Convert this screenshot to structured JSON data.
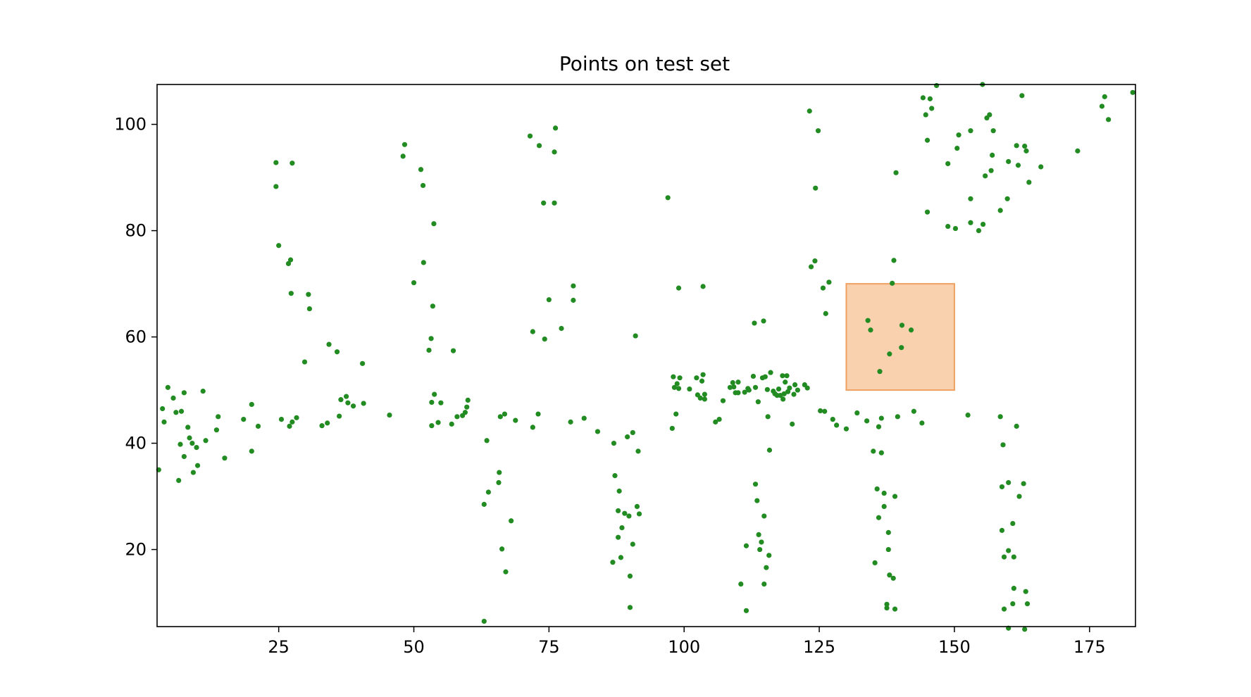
{
  "chart_data": {
    "type": "scatter",
    "title": "Points on test set",
    "xlabel": "",
    "ylabel": "",
    "xlim": [
      2.5,
      183.5
    ],
    "ylim": [
      5.5,
      107.5
    ],
    "xticks": [
      25,
      50,
      75,
      100,
      125,
      150,
      175
    ],
    "yticks": [
      20,
      40,
      60,
      80,
      100
    ],
    "grid": false,
    "legend": "none",
    "colors": {
      "points": "#228b22",
      "highlight_fill": "#f5b37a",
      "highlight_edge": "#f0a060"
    },
    "highlight_region": {
      "x0": 130,
      "x1": 150,
      "y0": 50,
      "y1": 70
    },
    "points": [
      [
        2.8,
        35
      ],
      [
        3.5,
        46.5
      ],
      [
        3.8,
        44
      ],
      [
        4.5,
        50.5
      ],
      [
        5.5,
        48.5
      ],
      [
        6,
        45.8
      ],
      [
        6.5,
        33
      ],
      [
        6.8,
        39.8
      ],
      [
        7,
        46
      ],
      [
        7.5,
        49.5
      ],
      [
        7.5,
        37.5
      ],
      [
        8.2,
        43
      ],
      [
        8.5,
        41
      ],
      [
        9,
        40
      ],
      [
        9.2,
        34.5
      ],
      [
        9.8,
        39.2
      ],
      [
        10,
        35.8
      ],
      [
        11,
        49.8
      ],
      [
        11.5,
        40.5
      ],
      [
        13.5,
        42.5
      ],
      [
        13.8,
        45
      ],
      [
        15,
        37.2
      ],
      [
        18.5,
        44.5
      ],
      [
        20,
        47.3
      ],
      [
        20,
        38.5
      ],
      [
        21.2,
        43.2
      ],
      [
        24.5,
        92.8
      ],
      [
        24.5,
        88.3
      ],
      [
        25,
        77.2
      ],
      [
        25.5,
        44.5
      ],
      [
        26.8,
        73.8
      ],
      [
        27,
        43.2
      ],
      [
        27.2,
        74.5
      ],
      [
        27.3,
        68.2
      ],
      [
        27.5,
        92.7
      ],
      [
        27.5,
        44
      ],
      [
        28.3,
        44.8
      ],
      [
        29.8,
        55.3
      ],
      [
        30.5,
        68
      ],
      [
        30.7,
        65.3
      ],
      [
        33,
        43.3
      ],
      [
        34,
        43.8
      ],
      [
        34.3,
        58.6
      ],
      [
        35.8,
        57.2
      ],
      [
        36.2,
        45.1
      ],
      [
        36.5,
        48.2
      ],
      [
        37.5,
        48.8
      ],
      [
        37.8,
        47.6
      ],
      [
        38.8,
        47
      ],
      [
        40.5,
        55
      ],
      [
        40.7,
        47.5
      ],
      [
        45.5,
        45.3
      ],
      [
        48,
        94
      ],
      [
        48.3,
        96.2
      ],
      [
        50,
        70.2
      ],
      [
        51.3,
        91.5
      ],
      [
        51.7,
        88.5
      ],
      [
        51.8,
        74
      ],
      [
        52.8,
        57.5
      ],
      [
        53.2,
        59.7
      ],
      [
        53.3,
        47.7
      ],
      [
        53.3,
        43.3
      ],
      [
        53.5,
        65.8
      ],
      [
        53.7,
        81.3
      ],
      [
        53.8,
        49.2
      ],
      [
        54.5,
        43.9
      ],
      [
        55,
        47.6
      ],
      [
        57,
        43.6
      ],
      [
        57.3,
        57.4
      ],
      [
        58,
        45
      ],
      [
        59,
        45.2
      ],
      [
        59.5,
        45.8
      ],
      [
        59.8,
        46.8
      ],
      [
        60,
        48.1
      ],
      [
        63,
        28.5
      ],
      [
        63,
        6.5
      ],
      [
        63.5,
        40.5
      ],
      [
        63.8,
        30.8
      ],
      [
        65.7,
        32.6
      ],
      [
        65.8,
        34.5
      ],
      [
        66,
        45
      ],
      [
        66.3,
        20.1
      ],
      [
        66.8,
        45.5
      ],
      [
        67,
        15.8
      ],
      [
        68,
        25.4
      ],
      [
        68.8,
        44.3
      ],
      [
        71.5,
        97.8
      ],
      [
        72,
        61
      ],
      [
        72,
        43
      ],
      [
        73,
        45.5
      ],
      [
        73.2,
        96
      ],
      [
        74,
        85.2
      ],
      [
        74.2,
        59.6
      ],
      [
        75,
        67
      ],
      [
        76,
        85.2
      ],
      [
        76,
        94.8
      ],
      [
        76.2,
        99.3
      ],
      [
        77.3,
        61.6
      ],
      [
        79,
        44
      ],
      [
        79.5,
        69.6
      ],
      [
        79.5,
        66.9
      ],
      [
        81.5,
        44.7
      ],
      [
        84,
        42.2
      ],
      [
        86.8,
        17.6
      ],
      [
        87,
        40
      ],
      [
        87.2,
        33.9
      ],
      [
        87.8,
        22.3
      ],
      [
        87.8,
        27.3
      ],
      [
        88,
        31
      ],
      [
        88.3,
        18.5
      ],
      [
        88.5,
        24.1
      ],
      [
        89,
        26.8
      ],
      [
        89.5,
        41.2
      ],
      [
        89.8,
        26.3
      ],
      [
        90,
        15
      ],
      [
        90,
        9.1
      ],
      [
        90.5,
        42
      ],
      [
        90.5,
        21
      ],
      [
        91,
        60.2
      ],
      [
        91.3,
        28.1
      ],
      [
        91.5,
        38.5
      ],
      [
        91.7,
        26.7
      ],
      [
        97,
        86.2
      ],
      [
        97.8,
        42.8
      ],
      [
        98,
        52.5
      ],
      [
        98.2,
        50.5
      ],
      [
        98.5,
        45.5
      ],
      [
        98.7,
        51.2
      ],
      [
        99,
        50.3
      ],
      [
        99,
        69.2
      ],
      [
        99.2,
        52.3
      ],
      [
        101,
        50.2
      ],
      [
        102.3,
        52.3
      ],
      [
        102.5,
        49.1
      ],
      [
        103,
        48.5
      ],
      [
        103.3,
        51.7
      ],
      [
        103.5,
        69.5
      ],
      [
        103.5,
        52.9
      ],
      [
        103.8,
        48.3
      ],
      [
        103.8,
        49.2
      ],
      [
        105.8,
        44
      ],
      [
        106.5,
        44.5
      ],
      [
        107.2,
        48
      ],
      [
        108.5,
        50.5
      ],
      [
        109,
        51.4
      ],
      [
        109.2,
        50.6
      ],
      [
        109.5,
        49.5
      ],
      [
        110,
        49.5
      ],
      [
        110,
        51.5
      ],
      [
        110.5,
        13.5
      ],
      [
        111.5,
        20.7
      ],
      [
        111.8,
        50.3
      ],
      [
        111.2,
        49.6
      ],
      [
        111.5,
        8.5
      ],
      [
        112,
        50
      ],
      [
        112.8,
        52.6
      ],
      [
        113.2,
        50.5
      ],
      [
        113.2,
        32.3
      ],
      [
        113,
        62.6
      ],
      [
        113.5,
        29.2
      ],
      [
        113.7,
        47.8
      ],
      [
        113.8,
        22.8
      ],
      [
        114,
        20
      ],
      [
        114.3,
        21.4
      ],
      [
        114.5,
        52.3
      ],
      [
        114.7,
        63
      ],
      [
        114.8,
        26.3
      ],
      [
        114.8,
        13.5
      ],
      [
        115,
        52.5
      ],
      [
        115.2,
        16.6
      ],
      [
        115.4,
        50.1
      ],
      [
        115.5,
        45
      ],
      [
        115.7,
        18.9
      ],
      [
        115.8,
        38.7
      ],
      [
        116,
        53.3
      ],
      [
        116.5,
        49.8
      ],
      [
        116.8,
        49.3
      ],
      [
        117.2,
        49
      ],
      [
        117.5,
        50.2
      ],
      [
        117.8,
        49
      ],
      [
        118.2,
        52.7
      ],
      [
        118.3,
        48.3
      ],
      [
        118.5,
        49.3
      ],
      [
        118.7,
        51.5
      ],
      [
        119,
        52.7
      ],
      [
        119.2,
        49.7
      ],
      [
        119.5,
        50.4
      ],
      [
        120,
        43.6
      ],
      [
        120.3,
        49.2
      ],
      [
        120.5,
        51
      ],
      [
        121,
        50
      ],
      [
        122.3,
        51
      ],
      [
        122.8,
        50.4
      ],
      [
        123.2,
        102.5
      ],
      [
        123.5,
        73.2
      ],
      [
        124.2,
        74.3
      ],
      [
        124.3,
        88
      ],
      [
        124.8,
        98.8
      ],
      [
        125.2,
        46.1
      ],
      [
        125.7,
        69.2
      ],
      [
        126,
        46
      ],
      [
        126.2,
        64.4
      ],
      [
        126.8,
        70.3
      ],
      [
        127.5,
        44.5
      ],
      [
        128.2,
        43.4
      ],
      [
        130,
        42.7
      ],
      [
        132,
        45.7
      ],
      [
        133.8,
        44.2
      ],
      [
        134,
        63.1
      ],
      [
        134.5,
        61.3
      ],
      [
        135,
        38.5
      ],
      [
        135.3,
        17.5
      ],
      [
        135.7,
        31.4
      ],
      [
        136,
        43.1
      ],
      [
        136,
        26
      ],
      [
        136.2,
        53.5
      ],
      [
        136.5,
        44.7
      ],
      [
        136.5,
        38.2
      ],
      [
        137,
        30.6
      ],
      [
        137,
        28.1
      ],
      [
        137.5,
        9.7
      ],
      [
        137.5,
        9
      ],
      [
        137.8,
        20
      ],
      [
        137.8,
        23.2
      ],
      [
        138,
        15.2
      ],
      [
        138,
        56.8
      ],
      [
        138.5,
        70.1
      ],
      [
        138.7,
        14.6
      ],
      [
        138.8,
        74.4
      ],
      [
        139,
        8.8
      ],
      [
        139,
        30
      ],
      [
        139.2,
        90.9
      ],
      [
        139.5,
        45
      ],
      [
        140.2,
        58
      ],
      [
        140.3,
        62.2
      ],
      [
        142,
        61.3
      ],
      [
        142.5,
        46
      ],
      [
        144,
        43.8
      ],
      [
        144.2,
        105
      ],
      [
        144.7,
        101.8
      ],
      [
        145,
        97
      ],
      [
        145,
        83.5
      ],
      [
        145.5,
        104.8
      ],
      [
        145.8,
        103
      ],
      [
        146.7,
        107.3
      ],
      [
        148.8,
        80.8
      ],
      [
        148.8,
        92.6
      ],
      [
        150.2,
        80.4
      ],
      [
        150.5,
        95.5
      ],
      [
        150.8,
        98
      ],
      [
        152.5,
        45.3
      ],
      [
        153,
        81.5
      ],
      [
        153,
        86
      ],
      [
        153,
        98.8
      ],
      [
        154.5,
        80
      ],
      [
        155.2,
        107.5
      ],
      [
        155.3,
        81.2
      ],
      [
        155.7,
        90.3
      ],
      [
        156,
        101.2
      ],
      [
        156.5,
        101.8
      ],
      [
        156.8,
        91.3
      ],
      [
        157,
        94.2
      ],
      [
        157.2,
        98.8
      ],
      [
        158.5,
        83.8
      ],
      [
        158.5,
        45
      ],
      [
        158.8,
        31.8
      ],
      [
        158.8,
        23.6
      ],
      [
        159,
        39.7
      ],
      [
        159.2,
        18.6
      ],
      [
        159.2,
        8.8
      ],
      [
        159.8,
        86
      ],
      [
        160,
        5.2
      ],
      [
        160,
        93
      ],
      [
        160,
        32.6
      ],
      [
        160,
        19.8
      ],
      [
        160.8,
        9.8
      ],
      [
        160.8,
        24.9
      ],
      [
        161,
        18.6
      ],
      [
        161,
        12.7
      ],
      [
        161.5,
        43.2
      ],
      [
        161.5,
        96
      ],
      [
        161.8,
        92.3
      ],
      [
        162,
        30
      ],
      [
        162.5,
        105.4
      ],
      [
        162.8,
        32.4
      ],
      [
        163,
        95.9
      ],
      [
        163,
        5
      ],
      [
        163.2,
        12.1
      ],
      [
        163.3,
        95
      ],
      [
        163.5,
        9.8
      ],
      [
        163.8,
        89.1
      ],
      [
        166,
        92
      ],
      [
        172.8,
        95
      ],
      [
        177.3,
        103.4
      ],
      [
        177.8,
        105.2
      ],
      [
        178.5,
        100.9
      ],
      [
        183,
        106
      ]
    ]
  }
}
